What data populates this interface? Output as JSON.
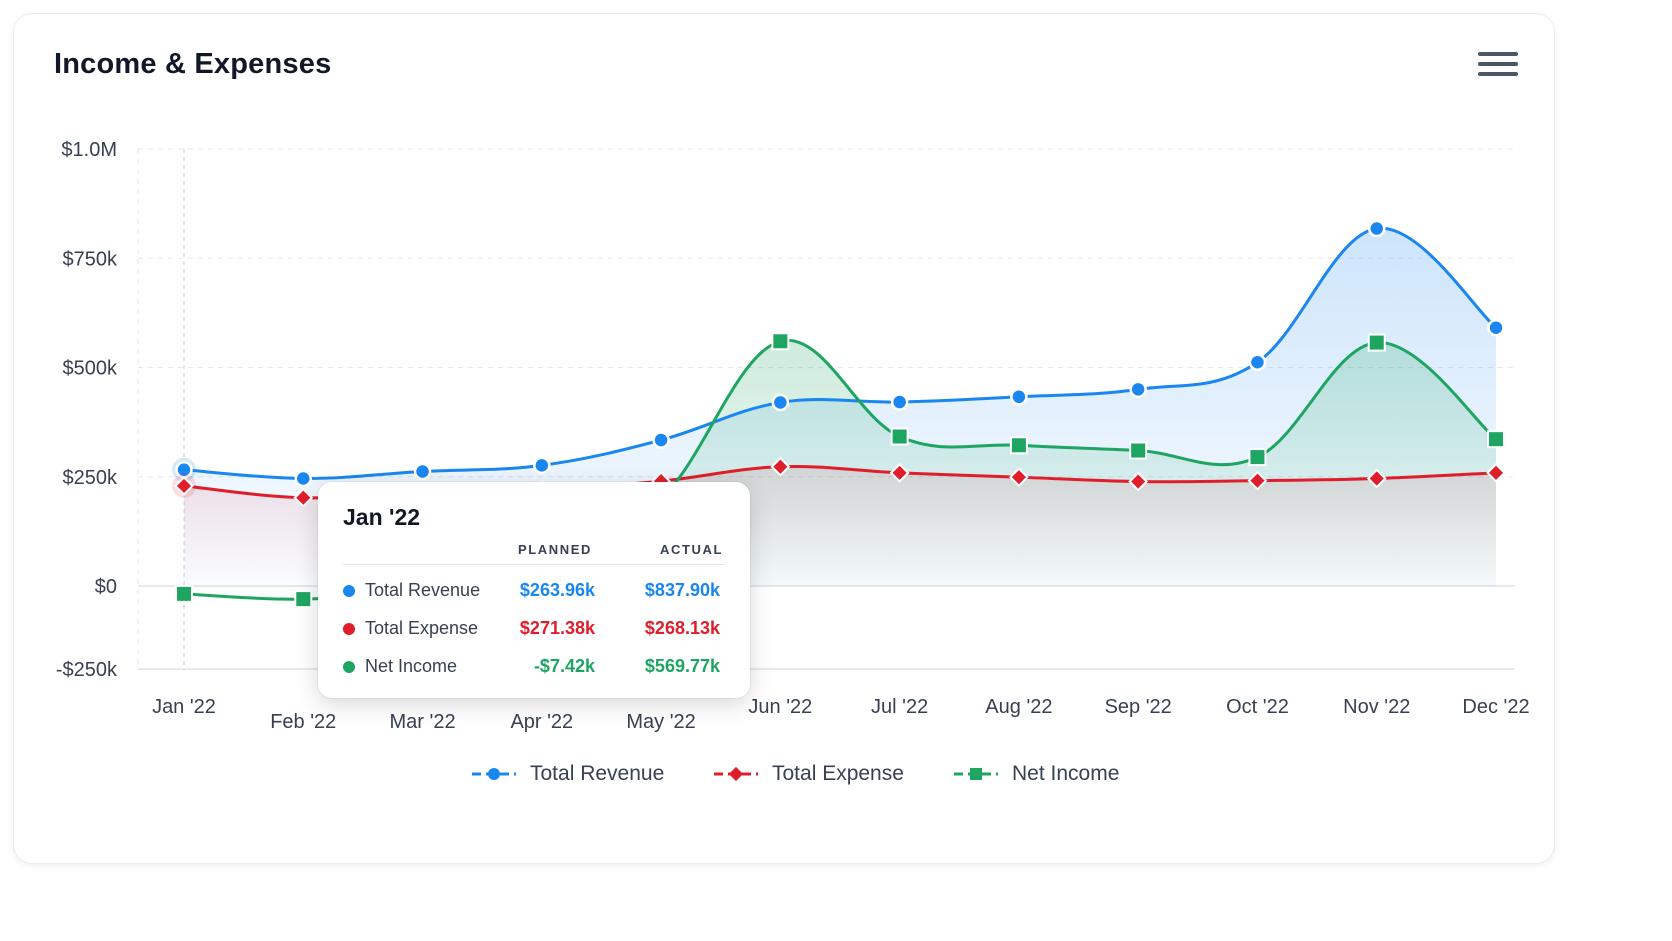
{
  "title": "Income & Expenses",
  "menu_icon": "hamburger-menu-icon",
  "colors": {
    "revenue": "#1a87f0",
    "expense": "#e01e2b",
    "net": "#1fa562",
    "grid": "#e5e7eb",
    "text": "#374151"
  },
  "chart_data": {
    "type": "line",
    "categories": [
      "Jan '22",
      "Feb '22",
      "Mar '22",
      "Apr '22",
      "May '22",
      "Jun '22",
      "Jul '22",
      "Aug '22",
      "Sep '22",
      "Oct '22",
      "Nov '22",
      "Dec '22"
    ],
    "y_ticks": [
      "$1.0M",
      "$750k",
      "$500k",
      "$250k",
      "$0",
      "-$250k"
    ],
    "ylim": [
      -190000,
      1000000
    ],
    "grid": true,
    "legend_position": "bottom",
    "series": [
      {
        "name": "Total Revenue",
        "color": "#1a87f0",
        "marker": "circle",
        "values": [
          266000,
          246000,
          262000,
          276000,
          334000,
          420000,
          421000,
          433000,
          450000,
          512000,
          818000,
          591000
        ]
      },
      {
        "name": "Total Expense",
        "color": "#e01e2b",
        "marker": "diamond",
        "values": [
          229000,
          202000,
          215000,
          220000,
          240000,
          273000,
          259000,
          249000,
          239000,
          241000,
          246000,
          259000
        ]
      },
      {
        "name": "Net Income",
        "color": "#1fa562",
        "marker": "square",
        "values": [
          -18000,
          -30000,
          -5000,
          60000,
          200000,
          560000,
          342000,
          322000,
          310000,
          295000,
          557000,
          336000
        ]
      }
    ]
  },
  "tooltip": {
    "title": "Jan '22",
    "col_planned": "PLANNED",
    "col_actual": "ACTUAL",
    "rows": [
      {
        "label": "Total Revenue",
        "planned": "$263.96k",
        "actual": "$837.90k",
        "color": "#1a87f0"
      },
      {
        "label": "Total Expense",
        "planned": "$271.38k",
        "actual": "$268.13k",
        "color": "#e01e2b"
      },
      {
        "label": "Net Income",
        "planned": "-$7.42k",
        "actual": "$569.77k",
        "color": "#1fa562"
      }
    ]
  },
  "legend": [
    {
      "label": "Total Revenue",
      "color": "#1a87f0",
      "marker": "circle"
    },
    {
      "label": "Total Expense",
      "color": "#e01e2b",
      "marker": "diamond"
    },
    {
      "label": "Net Income",
      "color": "#1fa562",
      "marker": "square"
    }
  ]
}
